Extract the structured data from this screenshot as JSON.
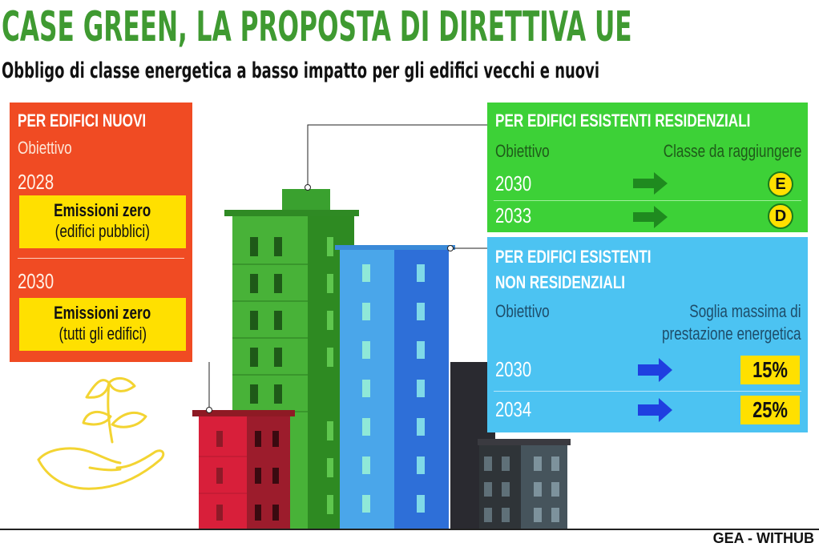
{
  "header": {
    "title": "CASE GREEN, LA PROPOSTA DI DIRETTIVA UE",
    "subtitle": "Obbligo di classe energetica a basso impatto per gli edifici vecchi e nuovi"
  },
  "new_buildings": {
    "heading": "PER EDIFICI NUOVI",
    "objective_label": "Obiettivo",
    "entries": [
      {
        "year": "2028",
        "target_bold": "Emissioni zero",
        "target_note": "(edifici pubblici)"
      },
      {
        "year": "2030",
        "target_bold": "Emissioni zero",
        "target_note": "(tutti gli edifici)"
      }
    ]
  },
  "residential": {
    "heading": "PER EDIFICI ESISTENTI RESIDENZIALI",
    "objective_label": "Obiettivo",
    "class_label": "Classe da raggiungere",
    "rows": [
      {
        "year": "2030",
        "class": "E"
      },
      {
        "year": "2033",
        "class": "D"
      }
    ]
  },
  "non_residential": {
    "heading_line1": "PER EDIFICI ESISTENTI",
    "heading_line2": "NON RESIDENZIALI",
    "objective_label": "Obiettivo",
    "threshold_line1": "Soglia massima di",
    "threshold_line2": "prestazione energetica",
    "rows": [
      {
        "year": "2030",
        "value": "15%"
      },
      {
        "year": "2034",
        "value": "25%"
      }
    ]
  },
  "credit": "GEA - WITHUB",
  "colors": {
    "title_green": "#3f9a31",
    "panel_orange": "#f04b23",
    "panel_green": "#3dd137",
    "panel_blue": "#4cc3f2",
    "highlight_yellow": "#ffe000",
    "arrow_green": "#1f8a1f",
    "arrow_blue": "#1f3fe0"
  },
  "icons": [
    "sprout-in-hand-icon",
    "arrow-right-icon"
  ]
}
